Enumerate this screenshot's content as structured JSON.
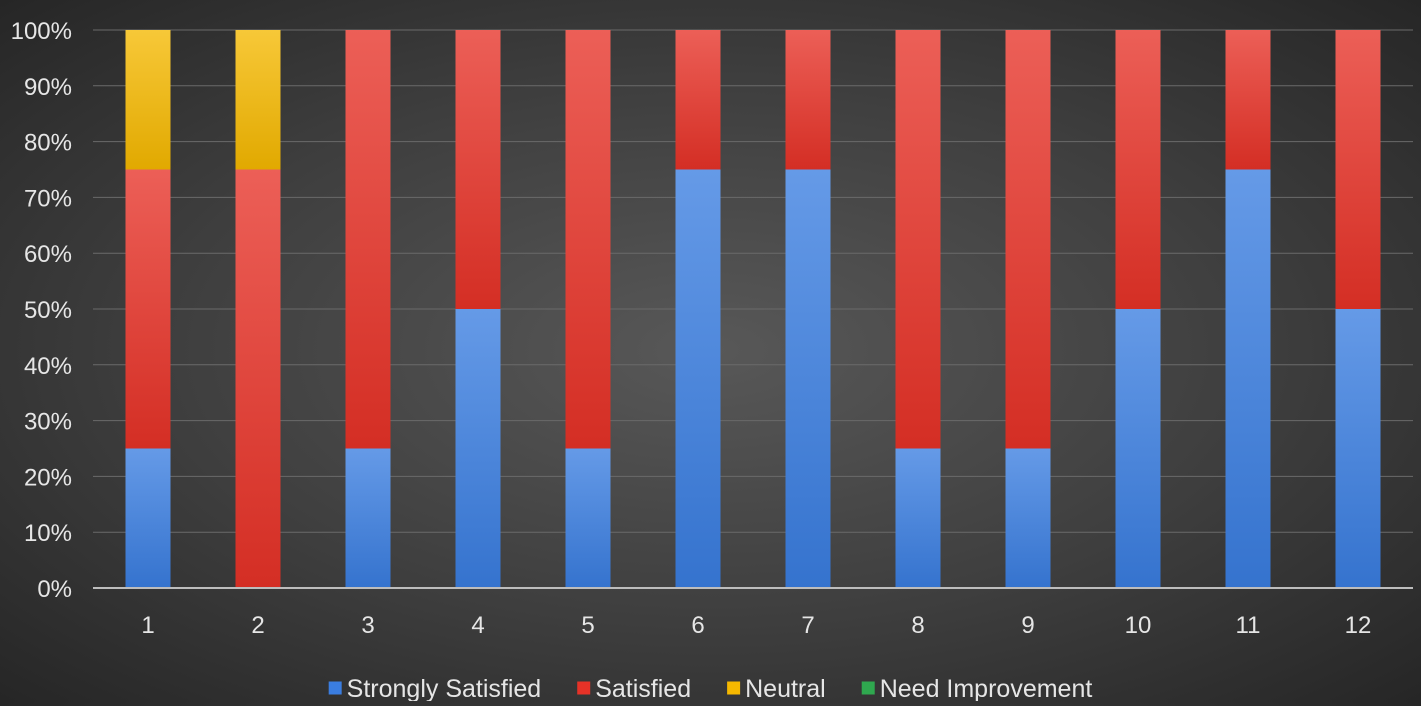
{
  "chart_data": {
    "type": "bar",
    "stacked": true,
    "normalized": true,
    "title": "",
    "xlabel": "",
    "ylabel": "",
    "categories": [
      "1",
      "2",
      "3",
      "4",
      "5",
      "6",
      "7",
      "8",
      "9",
      "10",
      "11",
      "12"
    ],
    "ylim": [
      0,
      100
    ],
    "y_ticks": [
      "0%",
      "10%",
      "20%",
      "30%",
      "40%",
      "50%",
      "60%",
      "70%",
      "80%",
      "90%",
      "100%"
    ],
    "grid": true,
    "legend_position": "bottom",
    "series": [
      {
        "name": "Strongly Satisfied",
        "color": "#3a7de0",
        "values": [
          25,
          0,
          25,
          50,
          25,
          75,
          75,
          25,
          25,
          50,
          75,
          50
        ]
      },
      {
        "name": "Satisfied",
        "color": "#e63227",
        "values": [
          50,
          75,
          75,
          50,
          75,
          25,
          25,
          75,
          75,
          50,
          25,
          50
        ]
      },
      {
        "name": "Neutral",
        "color": "#f5b800",
        "values": [
          25,
          25,
          0,
          0,
          0,
          0,
          0,
          0,
          0,
          0,
          0,
          0
        ]
      },
      {
        "name": "Need Improvement",
        "color": "#2fa84f",
        "values": [
          0,
          0,
          0,
          0,
          0,
          0,
          0,
          0,
          0,
          0,
          0,
          0
        ]
      }
    ]
  }
}
